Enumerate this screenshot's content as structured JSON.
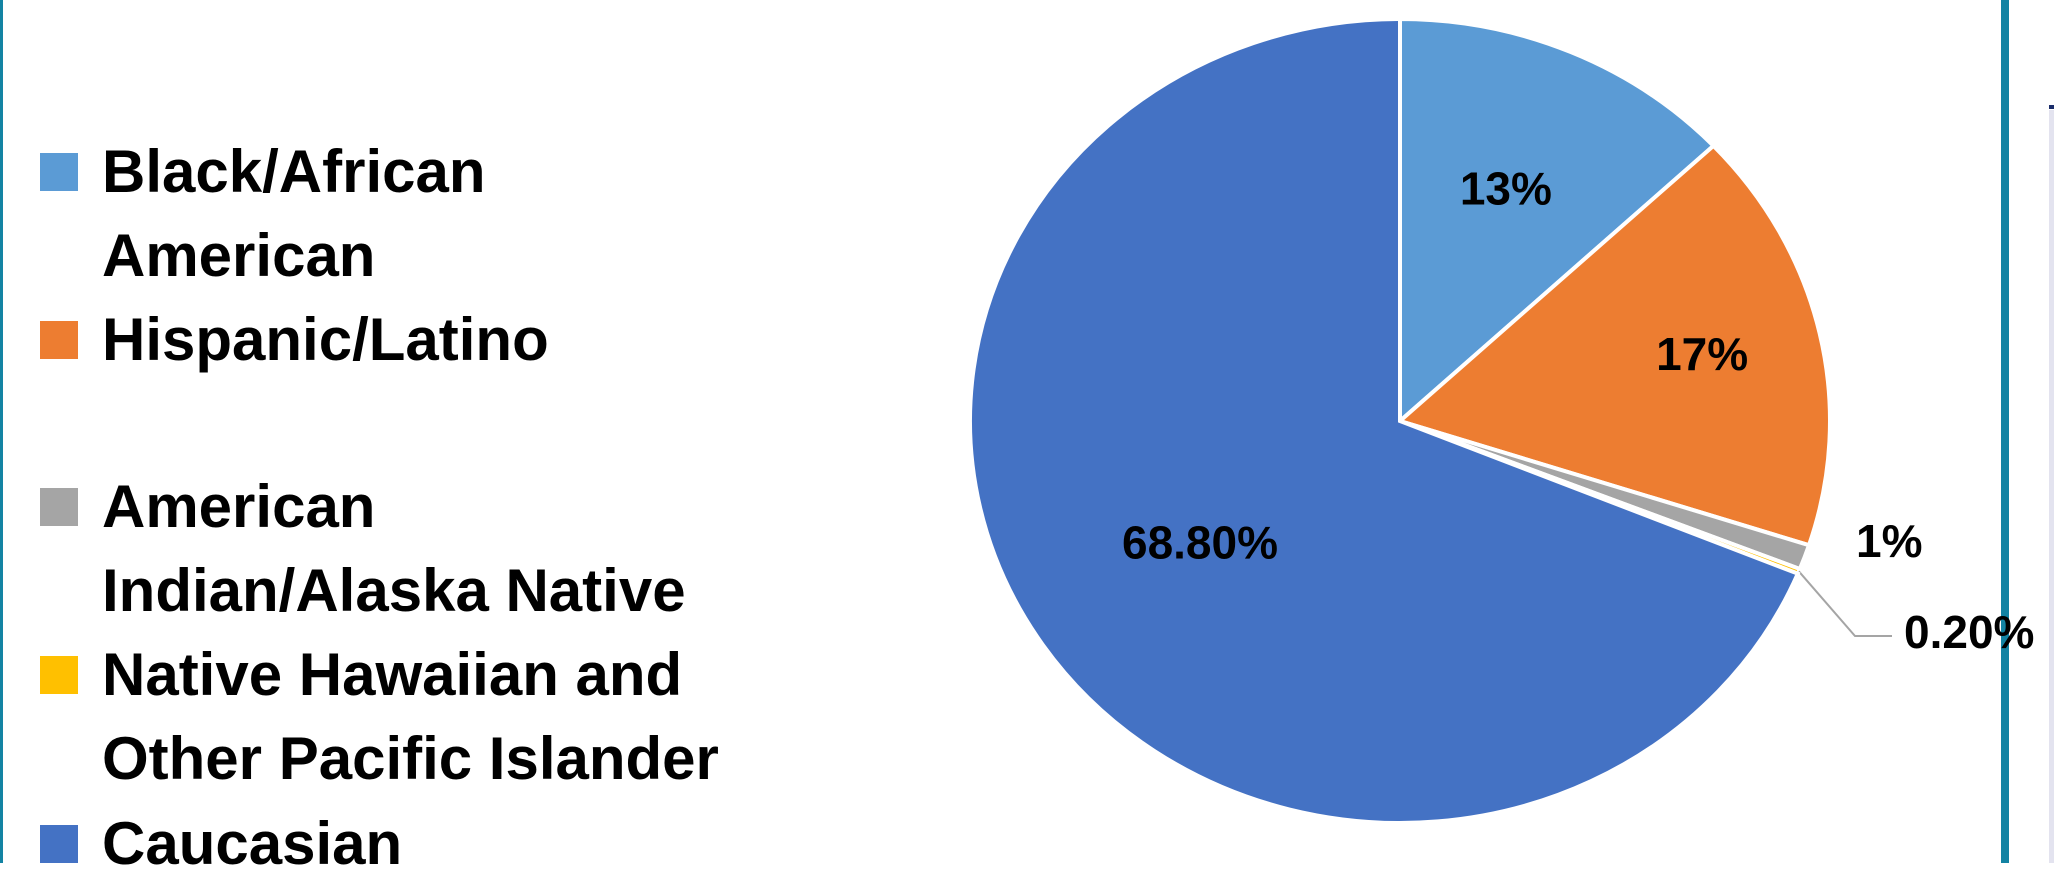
{
  "chart_data": {
    "type": "pie",
    "title": "",
    "legend_position": "left",
    "start_angle_deg": 0,
    "direction": "clockwise",
    "slices": [
      {
        "name": "Black/African\nAmerican",
        "value": 13,
        "label": "13%",
        "color": "#5b9bd5"
      },
      {
        "name": "Hispanic/Latino",
        "value": 17,
        "label": "17%",
        "color": "#ed7d31"
      },
      {
        "name": "American\nIndian/Alaska Native",
        "value": 1,
        "label": "1%",
        "color": "#a5a5a5"
      },
      {
        "name": "Native Hawaiian and\nOther Pacific Islander",
        "value": 0.2,
        "label": "0.20%",
        "color": "#ffc000"
      },
      {
        "name": "Caucasian",
        "value": 68.8,
        "label": "68.80%",
        "color": "#4472c4"
      }
    ]
  }
}
